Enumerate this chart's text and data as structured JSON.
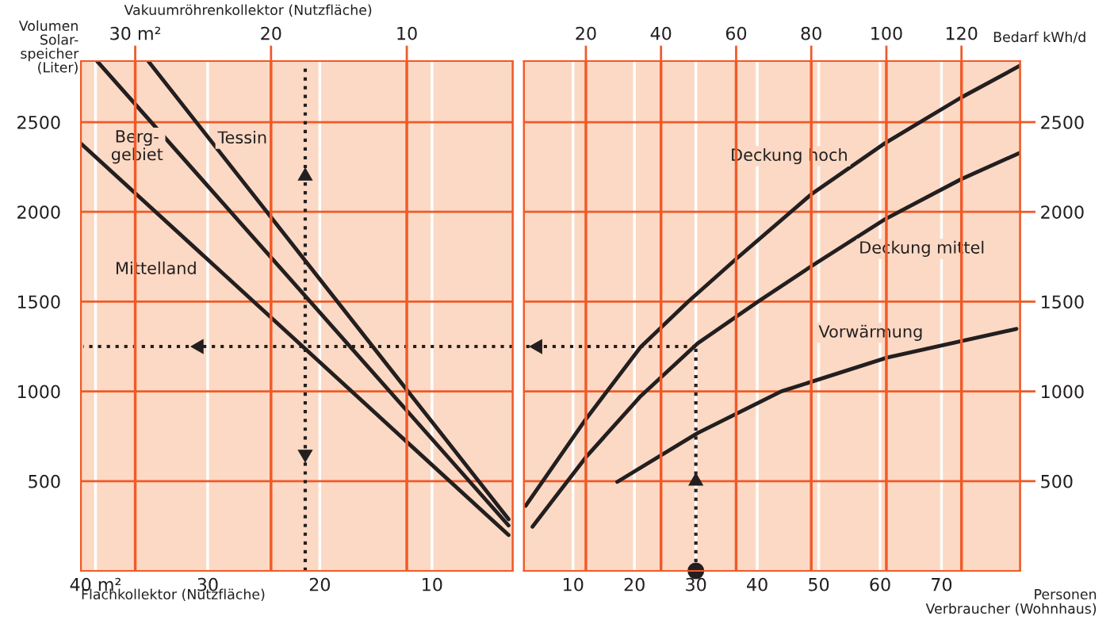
{
  "chart_data": [
    {
      "type": "line",
      "xlabel": "Flachkollektor (Nutzfläche)",
      "x2label": "Vakuumröhrenkollektor (Nutzfläche)",
      "ylabel": "Volumen\nSolar-\nspeicher\n(Liter)",
      "xlim": [
        41.3,
        2.8
      ],
      "xticks": [
        {
          "value": 40,
          "label": "40 m²"
        },
        30,
        20,
        10
      ],
      "x2lim": [
        34.0,
        2.2
      ],
      "x2ticks": [
        {
          "value": 30,
          "label": "30 m²"
        },
        20,
        10
      ],
      "ylim": [
        0,
        2840
      ],
      "yticks": [
        500,
        1000,
        1500,
        2000,
        2500
      ],
      "grid": true,
      "series": [
        {
          "name": "Mittelland",
          "color": "#231f20",
          "x": [
            41.3,
            3.17
          ],
          "values": [
            2381,
            200
          ]
        },
        {
          "name": "Berg-\ngebiet",
          "color": "#231f20",
          "x": [
            39.86,
            3.17
          ],
          "values": [
            2840,
            253
          ]
        },
        {
          "name": "Tessin",
          "color": "#231f20",
          "x": [
            35.3,
            3.17
          ],
          "values": [
            2840,
            288
          ]
        },
        {
          "color": "#231f20",
          "line_style": "dotted",
          "x": [
            21.3,
            21.3
          ],
          "values": [
            0,
            2805
          ]
        },
        {
          "color": "#231f20",
          "line_style": "dotted",
          "x": [
            2.8,
            41.1
          ],
          "values": [
            1250,
            1250
          ]
        }
      ]
    },
    {
      "type": "line",
      "xlabel": "Personen\nVerbraucher (Wohnhaus)",
      "x2label": "Bedarf kWh/d",
      "xlim": [
        2.0,
        82.8
      ],
      "xticks": [
        10,
        20,
        30,
        40,
        50,
        60,
        70
      ],
      "x2lim": [
        3.5,
        135.6
      ],
      "x2ticks": [
        20,
        40,
        60,
        80,
        100,
        120
      ],
      "ylim": [
        0,
        2840
      ],
      "yticks": [
        500,
        1000,
        1500,
        2000,
        2500
      ],
      "grid": true,
      "series": [
        {
          "name": "Deckung hoch",
          "color": "#231f20",
          "x": [
            2.29,
            12.06,
            21.0,
            28.8,
            36.5,
            48.8,
            60.9,
            73.2,
            82.7
          ],
          "values": [
            363,
            844,
            1247,
            1502,
            1736,
            2098,
            2385,
            2637,
            2813
          ]
        },
        {
          "name": "Deckung mittel",
          "color": "#231f20",
          "x": [
            3.4,
            12.06,
            21.0,
            30.3,
            40.2,
            48.8,
            60.9,
            73.2,
            82.7
          ],
          "values": [
            246,
            632,
            973,
            1268,
            1502,
            1697,
            1961,
            2182,
            2328
          ]
        },
        {
          "name": "Vorwärmung",
          "color": "#231f20",
          "x": [
            17.2,
            30.3,
            43.9,
            61.2,
            82.2
          ],
          "values": [
            496,
            768,
            1000,
            1189,
            1348
          ]
        },
        {
          "color": "#231f20",
          "line_style": "dotted",
          "x": [
            30,
            30
          ],
          "values": [
            0,
            1250
          ]
        },
        {
          "color": "#231f20",
          "line_style": "dotted",
          "x": [
            30,
            2.03
          ],
          "values": [
            1250,
            1250
          ]
        },
        {
          "type": "scatter",
          "color": "#231f20",
          "x": [
            30
          ],
          "values": [
            0
          ]
        }
      ]
    }
  ]
}
